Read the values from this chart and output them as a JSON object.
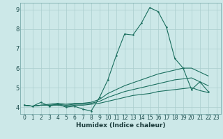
{
  "xlabel": "Humidex (Indice chaleur)",
  "x_values": [
    0,
    1,
    2,
    3,
    4,
    5,
    6,
    7,
    8,
    9,
    10,
    11,
    12,
    13,
    14,
    15,
    16,
    17,
    18,
    19,
    20,
    21,
    22,
    23
  ],
  "line1": [
    4.1,
    4.05,
    4.25,
    4.05,
    4.15,
    4.0,
    4.05,
    3.9,
    3.8,
    4.5,
    5.4,
    6.65,
    7.75,
    7.7,
    8.3,
    9.1,
    8.9,
    8.1,
    6.5,
    6.0,
    4.9,
    5.3,
    4.8,
    null
  ],
  "line2": [
    4.1,
    4.05,
    4.1,
    4.15,
    4.2,
    4.15,
    4.2,
    4.2,
    4.25,
    4.4,
    4.7,
    4.9,
    5.1,
    5.25,
    5.4,
    5.55,
    5.7,
    5.8,
    5.9,
    6.0,
    6.0,
    5.8,
    5.6,
    null
  ],
  "line3": [
    4.1,
    4.05,
    4.1,
    4.1,
    4.15,
    4.1,
    4.15,
    4.15,
    4.2,
    4.3,
    4.5,
    4.65,
    4.8,
    4.9,
    5.0,
    5.1,
    5.2,
    5.3,
    5.4,
    5.45,
    5.5,
    5.3,
    5.1,
    null
  ],
  "line4": [
    4.1,
    4.05,
    4.1,
    4.1,
    4.1,
    4.05,
    4.1,
    4.1,
    4.15,
    4.2,
    4.3,
    4.4,
    4.5,
    4.6,
    4.65,
    4.7,
    4.8,
    4.85,
    4.9,
    4.95,
    5.0,
    4.85,
    4.75,
    null
  ],
  "line_color": "#1a6e5e",
  "bg_color": "#cce8e8",
  "grid_color": "#aacece",
  "ylim": [
    3.65,
    9.35
  ],
  "xlim": [
    -0.5,
    23.5
  ],
  "yticks": [
    4,
    5,
    6,
    7,
    8,
    9
  ],
  "xticks": [
    0,
    1,
    2,
    3,
    4,
    5,
    6,
    7,
    8,
    9,
    10,
    11,
    12,
    13,
    14,
    15,
    16,
    17,
    18,
    19,
    20,
    21,
    22,
    23
  ],
  "tick_fontsize": 5.5,
  "xlabel_fontsize": 6.5,
  "ytick_fontsize": 6.0,
  "lw": 0.8,
  "marker_size": 1.8
}
